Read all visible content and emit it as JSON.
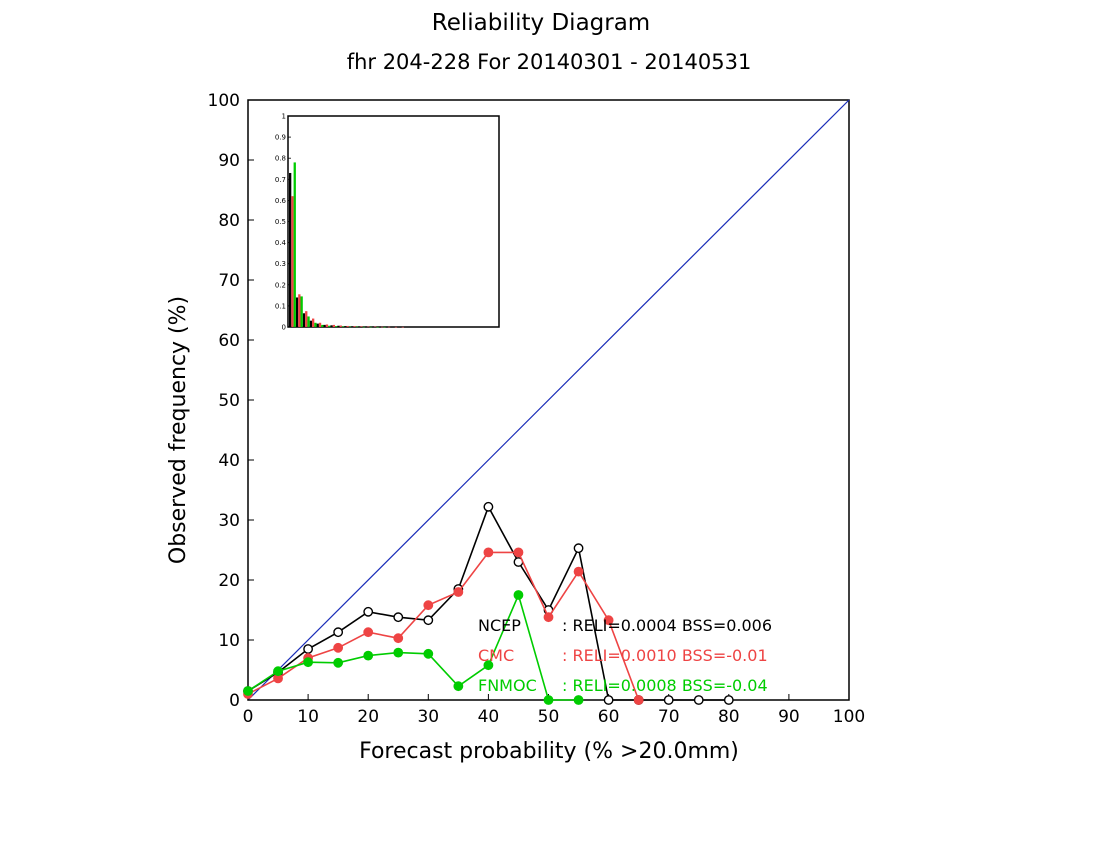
{
  "chart_data": {
    "type": "line",
    "title": "Reliability Diagram",
    "subtitle": "fhr 204-228 For 20140301 - 20140531",
    "xlabel": "Forecast probability (% >20.0mm)",
    "ylabel": "Observed frequency (%)",
    "xlim": [
      0,
      100
    ],
    "ylim": [
      0,
      100
    ],
    "x_ticks": [
      "0",
      "10",
      "20",
      "30",
      "40",
      "50",
      "60",
      "70",
      "80",
      "90",
      "100"
    ],
    "y_ticks": [
      "0",
      "10",
      "20",
      "30",
      "40",
      "50",
      "60",
      "70",
      "80",
      "90",
      "100"
    ],
    "diagonal_color": "#1a2db8",
    "series": [
      {
        "name": "NCEP",
        "color": "#000000",
        "marker": "open-circle",
        "stats": ": RELI=0.0004  BSS=0.006",
        "x": [
          0,
          5,
          10,
          15,
          20,
          25,
          30,
          35,
          40,
          45,
          50,
          55,
          60,
          65,
          70,
          75,
          80
        ],
        "values": [
          1.5,
          4.6,
          8.5,
          11.3,
          14.7,
          13.8,
          13.3,
          18.5,
          32.2,
          23.0,
          15.0,
          25.3,
          0,
          0,
          0,
          0,
          0
        ]
      },
      {
        "name": "CMC",
        "color": "#ee4444",
        "marker": "filled-circle",
        "stats": ": RELI=0.0010  BSS=-0.01",
        "x": [
          0,
          5,
          10,
          15,
          20,
          25,
          30,
          35,
          40,
          45,
          50,
          55,
          60,
          65
        ],
        "values": [
          1.0,
          3.6,
          7.0,
          8.7,
          11.3,
          10.3,
          15.8,
          18.0,
          24.6,
          24.6,
          13.8,
          21.4,
          13.3,
          0
        ]
      },
      {
        "name": "FNMOC",
        "color": "#00cc00",
        "marker": "filled-circle",
        "stats": ": RELI=0.0008  BSS=-0.04",
        "x": [
          0,
          5,
          10,
          15,
          20,
          25,
          30,
          35,
          40,
          45,
          50,
          55
        ],
        "values": [
          1.5,
          4.8,
          6.3,
          6.2,
          7.4,
          7.9,
          7.7,
          2.3,
          5.8,
          17.5,
          0,
          0
        ]
      }
    ],
    "inset": {
      "type": "bar",
      "ylim": [
        0,
        1
      ],
      "y_ticks": [
        "0",
        "0.1",
        "0.2",
        "0.3",
        "0.4",
        "0.5",
        "0.6",
        "0.7",
        "0.8",
        "0.9",
        "1"
      ],
      "bin_starts": [
        0,
        5,
        10,
        15,
        20,
        25,
        30,
        35,
        40,
        45,
        50,
        55,
        60,
        65,
        70,
        75,
        80
      ],
      "series": [
        {
          "color": "#000000",
          "values": [
            0.73,
            0.14,
            0.065,
            0.03,
            0.016,
            0.01,
            0.008,
            0.006,
            0.004,
            0.003,
            0.002,
            0.002,
            0.001,
            0.001,
            0.001,
            0.0005,
            0.0005
          ]
        },
        {
          "color": "#ee4444",
          "values": [
            0.62,
            0.155,
            0.075,
            0.04,
            0.02,
            0.012,
            0.01,
            0.007,
            0.005,
            0.004,
            0.003,
            0.002,
            0.002,
            0.001,
            0.001,
            0.0005,
            0.0005
          ]
        },
        {
          "color": "#00cc00",
          "values": [
            0.78,
            0.145,
            0.05,
            0.02,
            0.01,
            0.006,
            0.004,
            0.003,
            0.002,
            0.002,
            0.001,
            0.001,
            0.0005,
            0.0005,
            0,
            0,
            0
          ]
        }
      ]
    }
  }
}
